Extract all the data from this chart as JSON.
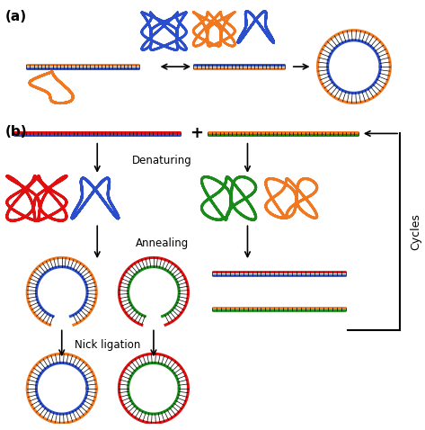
{
  "colors": {
    "orange": "#F07820",
    "blue": "#2B4ECC",
    "red": "#E01010",
    "green": "#1A8A1A",
    "black": "#000000",
    "white": "#FFFFFF"
  },
  "label_a": "(a)",
  "label_b": "(b)",
  "text_denaturing": "Denaturing",
  "text_annealing": "Annealing",
  "text_nick_ligation": "Nick ligation",
  "text_cycles": "Cycles",
  "text_plus": "+",
  "fig_width": 4.73,
  "fig_height": 4.78,
  "dpi": 100
}
